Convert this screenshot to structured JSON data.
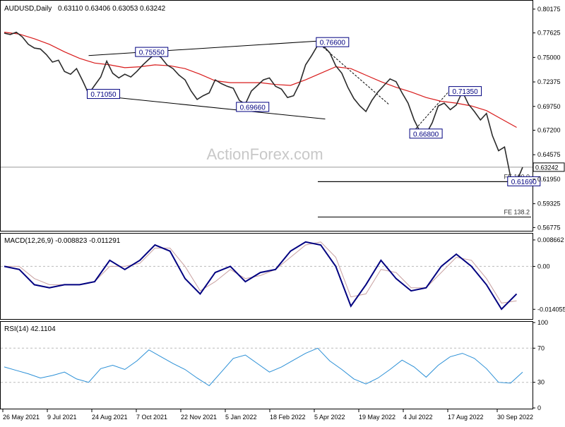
{
  "header": {
    "symbol": "AUDUSD,Daily",
    "ohlc": "0.63110 0.63406 0.63053 0.63242"
  },
  "watermark": "ActionForex.com",
  "colors": {
    "price": "#2b2b2b",
    "ma": "#d81b1b",
    "macd": "#000080",
    "signal": "#c8a0a0",
    "rsi": "#2a8fd6",
    "trendline": "#000000",
    "box_border": "#000080",
    "current_line": "#9a9a9a"
  },
  "chart_data": [
    {
      "type": "line",
      "panel": "price",
      "x_ticks": [
        "26 May 2021",
        "9 Jul 2021",
        "24 Aug 2021",
        "7 Oct 2021",
        "22 Nov 2021",
        "5 Jan 2022",
        "18 Feb 2022",
        "5 Apr 2022",
        "19 May 2022",
        "4 Jul 2022",
        "17 Aug 2022",
        "30 Sep 2022"
      ],
      "y_ticks": [
        "0.80175",
        "0.77625",
        "0.75000",
        "0.72375",
        "0.69750",
        "0.67200",
        "0.64575",
        "0.61950",
        "0.59325",
        "0.56775"
      ],
      "ylim": [
        0.565,
        0.81
      ],
      "current_price": "0.63242",
      "series": [
        {
          "role": "price",
          "x": [
            0,
            4,
            8,
            12,
            16,
            20,
            24,
            28,
            32,
            36,
            40,
            44,
            48,
            52,
            56,
            60,
            64,
            68,
            72,
            76,
            80,
            84,
            88,
            92,
            96,
            100,
            104,
            108,
            112,
            116,
            120,
            124,
            128,
            132,
            136,
            140,
            144,
            148,
            152,
            156,
            160,
            164,
            168,
            172,
            176,
            180,
            184,
            188,
            192,
            196,
            200,
            204,
            208,
            212,
            216,
            220,
            224,
            228,
            232,
            236,
            240,
            244,
            248,
            252,
            256,
            260,
            264,
            268,
            272,
            276,
            280,
            284,
            288,
            292,
            296,
            300,
            304,
            308,
            312,
            316,
            320,
            324,
            328,
            332,
            336,
            340,
            344
          ],
          "y": [
            0.776,
            0.7745,
            0.777,
            0.772,
            0.764,
            0.76,
            0.759,
            0.753,
            0.745,
            0.747,
            0.735,
            0.732,
            0.738,
            0.725,
            0.711,
            0.72,
            0.729,
            0.746,
            0.733,
            0.728,
            0.732,
            0.729,
            0.735,
            0.742,
            0.748,
            0.754,
            0.75,
            0.742,
            0.738,
            0.731,
            0.726,
            0.714,
            0.705,
            0.709,
            0.712,
            0.726,
            0.722,
            0.719,
            0.717,
            0.704,
            0.7,
            0.714,
            0.72,
            0.726,
            0.728,
            0.719,
            0.716,
            0.707,
            0.709,
            0.722,
            0.742,
            0.752,
            0.763,
            0.762,
            0.755,
            0.741,
            0.733,
            0.718,
            0.706,
            0.698,
            0.692,
            0.704,
            0.713,
            0.72,
            0.727,
            0.724,
            0.712,
            0.701,
            0.683,
            0.67,
            0.668,
            0.68,
            0.698,
            0.701,
            0.694,
            0.699,
            0.7135,
            0.7,
            0.692,
            0.683,
            0.69,
            0.666,
            0.65,
            0.654,
            0.622,
            0.6169,
            0.6324
          ]
        },
        {
          "role": "moving-average",
          "x": [
            0,
            10,
            20,
            30,
            40,
            50,
            60,
            70,
            80,
            90,
            100,
            110,
            120,
            130,
            140,
            150,
            160,
            170,
            180,
            190,
            200,
            210,
            220,
            230,
            240,
            250,
            260,
            270,
            280,
            290,
            300,
            310,
            320,
            330,
            340
          ],
          "y": [
            0.777,
            0.775,
            0.77,
            0.764,
            0.756,
            0.749,
            0.744,
            0.742,
            0.739,
            0.74,
            0.742,
            0.741,
            0.738,
            0.732,
            0.725,
            0.723,
            0.723,
            0.723,
            0.721,
            0.72,
            0.726,
            0.733,
            0.74,
            0.738,
            0.731,
            0.724,
            0.718,
            0.713,
            0.707,
            0.703,
            0.701,
            0.698,
            0.693,
            0.684,
            0.675
          ]
        }
      ],
      "trendlines": [
        {
          "x": [
            56,
            213
          ],
          "y": [
            0.752,
            0.768
          ]
        },
        {
          "x": [
            56,
            213
          ],
          "y": [
            0.71,
            0.684
          ]
        },
        {
          "x": [
            208,
            255
          ],
          "y": [
            0.766,
            0.7
          ]
        },
        {
          "x": [
            270,
            295
          ],
          "y": [
            0.668,
            0.7135
          ]
        }
      ],
      "level_lines": [
        {
          "label": "",
          "y": 0.6169
        },
        {
          "label": "FE 100.0",
          "y": 0.6169
        },
        {
          "label": "FE 138.2",
          "y": 0.579
        }
      ],
      "annotations": [
        {
          "label": "0.71050",
          "x": 56,
          "y": 0.7105
        },
        {
          "label": "0.75550",
          "x": 88,
          "y": 0.7555
        },
        {
          "label": "0.69660",
          "x": 155,
          "y": 0.6966
        },
        {
          "label": "0.76600",
          "x": 208,
          "y": 0.766
        },
        {
          "label": "0.66800",
          "x": 270,
          "y": 0.668
        },
        {
          "label": "0.71350",
          "x": 296,
          "y": 0.7135
        },
        {
          "label": "0.61690",
          "x": 335,
          "y": 0.6169
        }
      ]
    },
    {
      "type": "line",
      "panel": "macd",
      "title": "MACD(12,26,9) -0.008823 -0.011291",
      "y_ticks": [
        "0.008662",
        "0.00",
        "-0.014055"
      ],
      "ylim": [
        -0.017,
        0.0105
      ],
      "series": [
        {
          "role": "macd",
          "x": [
            0,
            10,
            20,
            30,
            40,
            50,
            60,
            70,
            80,
            90,
            100,
            110,
            120,
            130,
            140,
            150,
            160,
            170,
            180,
            190,
            200,
            210,
            220,
            230,
            240,
            250,
            260,
            270,
            280,
            290,
            300,
            310,
            320,
            330,
            340
          ],
          "y": [
            0.0,
            -0.001,
            -0.006,
            -0.007,
            -0.006,
            -0.006,
            -0.005,
            0.002,
            -0.001,
            0.002,
            0.007,
            0.005,
            -0.004,
            -0.009,
            -0.002,
            0.0,
            -0.005,
            -0.002,
            -0.001,
            0.005,
            0.008,
            0.007,
            0.0,
            -0.013,
            -0.006,
            0.002,
            -0.004,
            -0.008,
            -0.007,
            0.0,
            0.004,
            0.0,
            -0.006,
            -0.014,
            -0.009
          ]
        },
        {
          "role": "signal",
          "x": [
            0,
            10,
            20,
            30,
            40,
            50,
            60,
            70,
            80,
            90,
            100,
            110,
            120,
            130,
            140,
            150,
            160,
            170,
            180,
            190,
            200,
            210,
            220,
            230,
            240,
            250,
            260,
            270,
            280,
            290,
            300,
            310,
            320,
            330,
            340
          ],
          "y": [
            0.0,
            0.0,
            -0.004,
            -0.006,
            -0.006,
            -0.006,
            -0.005,
            0.0,
            0.0,
            0.001,
            0.006,
            0.006,
            0.0,
            -0.008,
            -0.005,
            -0.001,
            -0.004,
            -0.003,
            -0.001,
            0.003,
            0.007,
            0.008,
            0.003,
            -0.01,
            -0.009,
            -0.001,
            -0.002,
            -0.007,
            -0.007,
            -0.002,
            0.003,
            0.002,
            -0.004,
            -0.012,
            -0.0113
          ]
        }
      ]
    },
    {
      "type": "line",
      "panel": "rsi",
      "title": "RSI(14) 42.1104",
      "y_ticks": [
        "100",
        "70",
        "30",
        "0"
      ],
      "ylim": [
        0,
        100
      ],
      "levels": [
        70,
        30
      ],
      "series": [
        {
          "role": "rsi",
          "x": [
            0,
            8,
            16,
            24,
            32,
            40,
            48,
            56,
            64,
            72,
            80,
            88,
            96,
            104,
            112,
            120,
            128,
            136,
            144,
            152,
            160,
            168,
            176,
            184,
            192,
            200,
            208,
            216,
            224,
            232,
            240,
            248,
            256,
            264,
            272,
            280,
            288,
            296,
            304,
            312,
            320,
            328,
            336,
            344
          ],
          "y": [
            48,
            44,
            40,
            35,
            38,
            42,
            34,
            30,
            46,
            50,
            45,
            55,
            68,
            60,
            52,
            45,
            35,
            26,
            42,
            58,
            62,
            52,
            42,
            48,
            56,
            64,
            70,
            55,
            45,
            34,
            28,
            35,
            45,
            56,
            48,
            36,
            50,
            60,
            64,
            58,
            46,
            30,
            29,
            42
          ]
        }
      ]
    }
  ]
}
